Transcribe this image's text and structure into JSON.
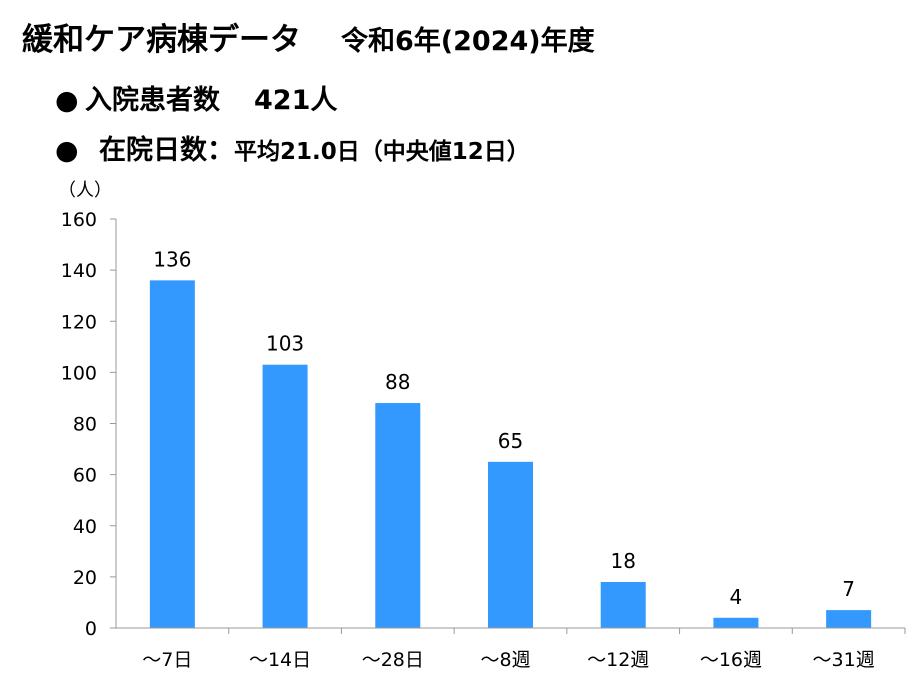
{
  "header": {
    "title": "緩和ケア病棟データ",
    "year": "令和6年(2024)年度"
  },
  "stats": {
    "bullet": "●",
    "patients_label": "入院患者数",
    "patients_value": "421人",
    "stay_label": "在院日数：",
    "stay_value": "平均21.0日（中央値12日）"
  },
  "colors": {
    "bar": "#3399ff",
    "axis": "#999999"
  },
  "chart_data": {
    "type": "bar",
    "categories": [
      "～7日",
      "～14日",
      "～28日",
      "～8週",
      "～12週",
      "～16週",
      "～31週"
    ],
    "values": [
      136,
      103,
      88,
      65,
      18,
      4,
      7
    ],
    "data_labels": [
      "136",
      "103",
      "88",
      "65",
      "18",
      "4",
      "7"
    ],
    "ylabel": "（人）",
    "ylim": [
      0,
      160
    ],
    "yticks": [
      0,
      20,
      40,
      60,
      80,
      100,
      120,
      140,
      160
    ],
    "ytick_labels": [
      "0",
      "20",
      "40",
      "60",
      "80",
      "100",
      "120",
      "140",
      "160"
    ],
    "grid": false,
    "legend": "none"
  }
}
